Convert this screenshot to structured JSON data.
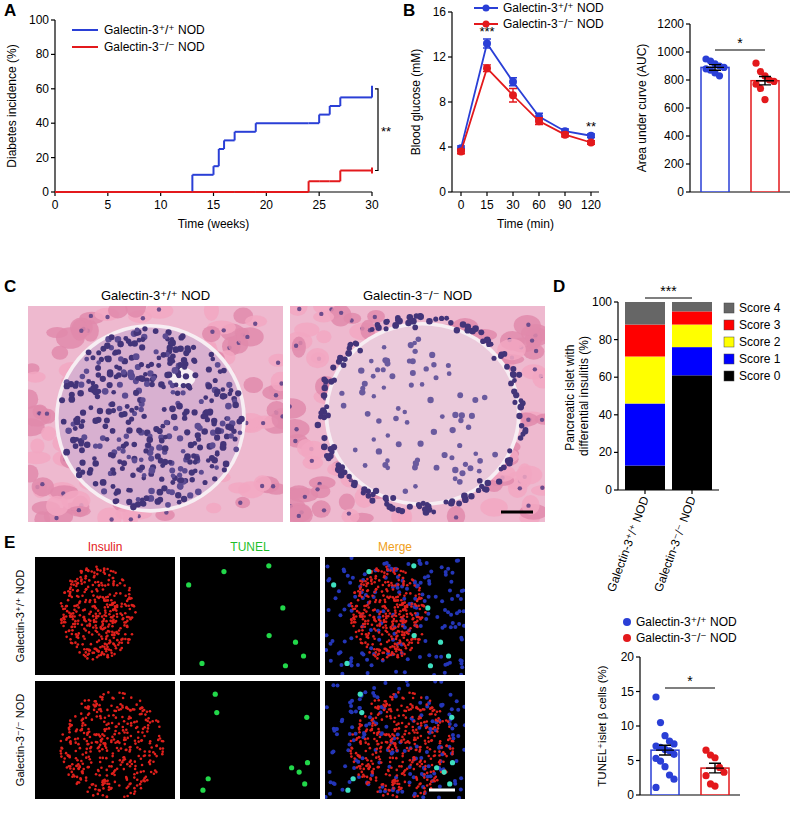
{
  "chart_data": [
    {
      "panel": "A",
      "type": "line",
      "line_style": "step",
      "x_label": "Time (weeks)",
      "y_label": "Diabetes incidence (%)",
      "x": [
        0,
        13,
        15,
        15.5,
        16,
        17,
        19,
        24,
        25,
        26,
        27,
        30
      ],
      "series": [
        {
          "name": "Galectin-3⁺/⁺ NOD",
          "color": "#2a3fd6",
          "values": [
            0,
            10,
            15,
            25,
            30,
            35,
            40,
            40,
            45,
            50,
            55,
            60
          ]
        },
        {
          "name": "Galectin-3⁻/⁻ NOD",
          "color": "#e3191c",
          "values": [
            0,
            0,
            0,
            0,
            0,
            0,
            0,
            6.25,
            6.25,
            6.25,
            12.5,
            12.5
          ]
        }
      ],
      "xlim": [
        0,
        30
      ],
      "xticks": [
        0,
        5,
        10,
        15,
        20,
        25,
        30
      ],
      "ylim": [
        0,
        100
      ],
      "yticks": [
        0,
        20,
        40,
        60,
        80,
        100
      ],
      "legend": "top-left",
      "annotations": [
        {
          "text": "**"
        }
      ]
    },
    {
      "panel": "B",
      "type": "line",
      "marker": "circle",
      "x_label": "Time (min)",
      "y_label": "Blood glucose (mM)",
      "categories": [
        "0",
        "15",
        "30",
        "60",
        "90",
        "120"
      ],
      "series": [
        {
          "name": "Galectin-3⁺/⁺ NOD",
          "color": "#2a3fd6",
          "values": [
            3.9,
            13.2,
            9.8,
            6.7,
            5.4,
            5.0
          ],
          "errors": [
            0.2,
            0.4,
            0.35,
            0.3,
            0.2,
            0.15
          ]
        },
        {
          "name": "Galectin-3⁻/⁻ NOD",
          "color": "#e3191c",
          "values": [
            3.6,
            11.0,
            8.6,
            6.3,
            5.1,
            4.4
          ],
          "errors": [
            0.2,
            0.3,
            0.6,
            0.3,
            0.2,
            0.15
          ]
        }
      ],
      "ylim": [
        0,
        16
      ],
      "yticks": [
        0,
        4,
        8,
        12,
        16
      ],
      "legend": "top-right",
      "annotations": [
        {
          "text": "***",
          "x": "15"
        },
        {
          "text": "**",
          "x": "120"
        }
      ]
    },
    {
      "type": "bar",
      "y_label": "Area under curve (AUC)",
      "categories": [
        null,
        null
      ],
      "values": [
        890,
        795
      ],
      "errors": [
        20,
        30
      ],
      "points": [
        [
          950,
          935,
          915,
          900,
          890,
          880,
          870,
          850,
          830
        ],
        [
          920,
          860,
          830,
          800,
          790,
          770,
          740,
          660
        ]
      ],
      "colors": [
        "#2a3fd6",
        "#e3191c"
      ],
      "ylim": [
        0,
        1200
      ],
      "yticks": [
        0,
        200,
        400,
        600,
        800,
        1000,
        1200
      ],
      "tick_labels": "y",
      "annotations": [
        {
          "text": "*"
        }
      ]
    },
    {
      "panel": "D",
      "type": "bar",
      "stacked": true,
      "y_label": "Pancreatic islet with differential insulitis (%)",
      "categories": [
        "Galectin-3⁺/⁺ NOD",
        "Galectin-3⁻/⁻ NOD"
      ],
      "series": [
        {
          "name": "Score 0",
          "color": "#000000",
          "values": [
            13,
            61
          ]
        },
        {
          "name": "Score 1",
          "color": "#0000ff",
          "values": [
            33,
            15
          ]
        },
        {
          "name": "Score 2",
          "color": "#ffff00",
          "values": [
            25,
            12
          ]
        },
        {
          "name": "Score 3",
          "color": "#ff0000",
          "values": [
            17,
            7
          ]
        },
        {
          "name": "Score 4",
          "color": "#666666",
          "values": [
            12,
            5
          ]
        }
      ],
      "ylim": [
        0,
        100
      ],
      "yticks": [
        0,
        20,
        40,
        60,
        80,
        100
      ],
      "legend": "right",
      "annotations": [
        {
          "text": "***"
        }
      ]
    },
    {
      "type": "bar",
      "y_label": "TUNEL⁺islet β cells (%)",
      "categories": [
        null,
        null
      ],
      "series": [
        {
          "name": "Galectin-3⁺/⁺ NOD",
          "color": "#2a3fd6",
          "values": [
            6.5,
            null
          ],
          "errors": [
            0.7,
            null
          ],
          "points": [
            [
              14.2,
              10.5,
              8.6,
              7.8,
              7.4,
              7.1,
              6.9,
              6.6,
              6.4,
              5.9,
              5.3,
              4.9,
              4.1,
              2.9,
              2.3,
              1.1
            ],
            null
          ]
        },
        {
          "name": "Galectin-3⁻/⁻ NOD",
          "color": "#e3191c",
          "values": [
            null,
            3.9
          ],
          "errors": [
            null,
            0.7
          ],
          "points": [
            null,
            [
              6.5,
              5.8,
              5.4,
              4.0,
              3.3,
              2.8,
              1.6,
              1.3
            ]
          ]
        }
      ],
      "ylim": [
        0,
        20
      ],
      "yticks": [
        0,
        5,
        10,
        15,
        20
      ],
      "legend": "top",
      "tick_labels": "y",
      "annotations": [
        {
          "text": "*"
        }
      ]
    }
  ],
  "panels": [
    {
      "panel": "C",
      "titles": [
        "Galectin-3⁺/⁺ NOD",
        "Galectin-3⁻/⁻ NOD"
      ]
    },
    {
      "panel": "E",
      "columns": [
        "Insulin",
        "TUNEL",
        "Merge"
      ],
      "rows": [
        "Galectin-3⁺/⁺ NOD",
        "Galectin-3⁻/⁻ NOD"
      ]
    }
  ]
}
